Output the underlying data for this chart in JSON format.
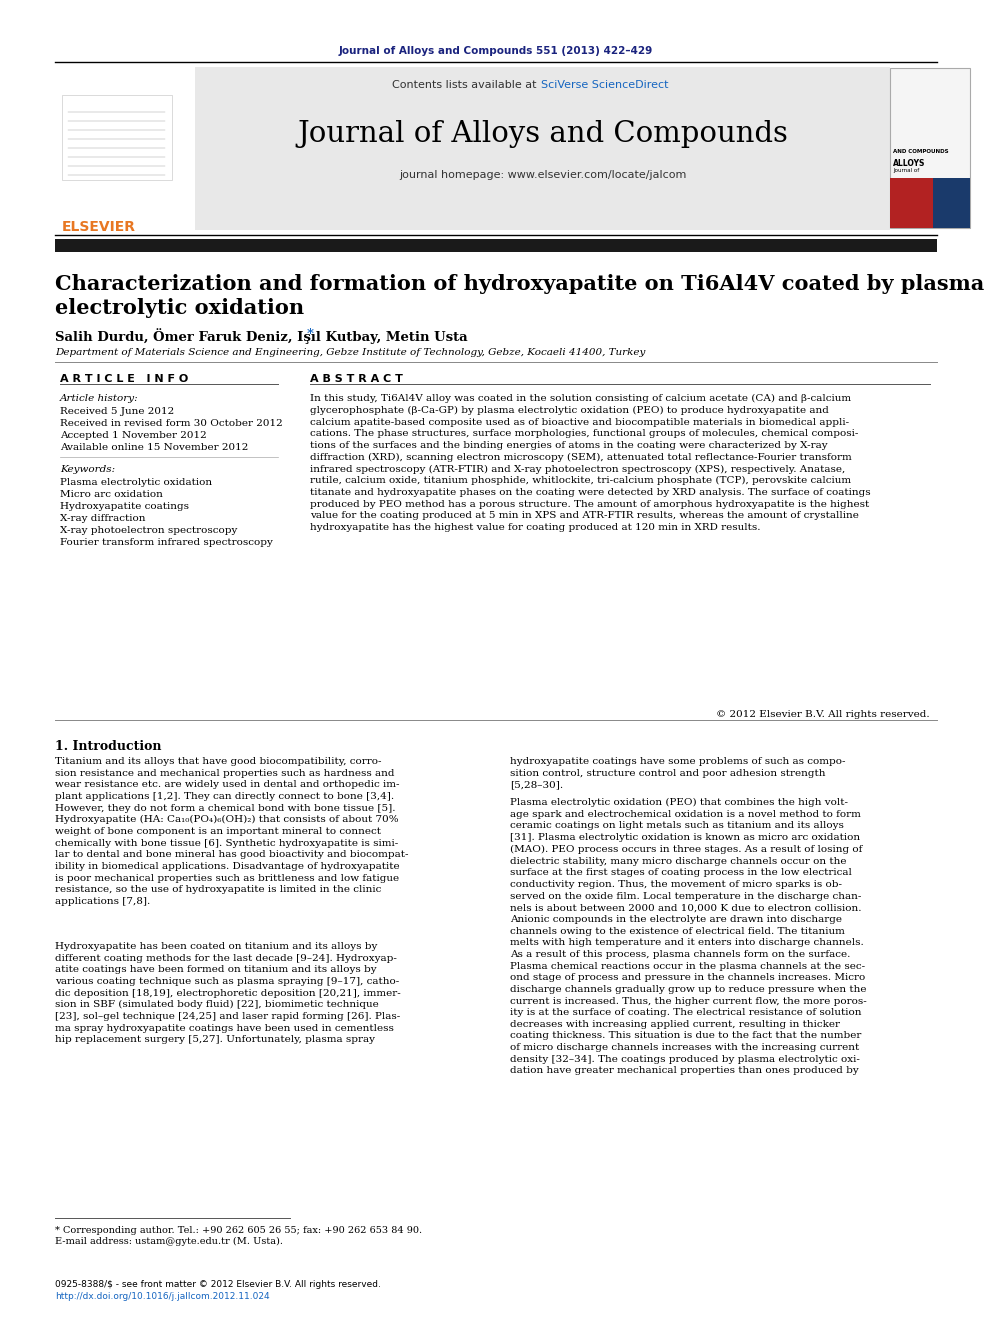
{
  "page_bg": "#ffffff",
  "top_journal_ref": "Journal of Alloys and Compounds 551 (2013) 422–429",
  "top_ref_color": "#1a237e",
  "header_bg": "#e8e8e8",
  "header_text": "Contents lists available at ",
  "header_sciverse": "SciVerse ScienceDirect",
  "header_sciverse_color": "#1565c0",
  "journal_title": "Journal of Alloys and Compounds",
  "journal_homepage": "journal homepage: www.elsevier.com/locate/jalcom",
  "elsevier_color": "#e87722",
  "black_bar_color": "#1a1a1a",
  "article_title_line1": "Characterization and formation of hydroxyapatite on Ti6Al4V coated by plasma",
  "article_title_line2": "electrolytic oxidation",
  "authors": "Salih Durdu, Ömer Faruk Deniz, Işıl Kutbay, Metin Usta",
  "affiliation": "Department of Materials Science and Engineering, Gebze Institute of Technology, Gebze, Kocaeli 41400, Turkey",
  "article_info_header": "A R T I C L E   I N F O",
  "abstract_header": "A B S T R A C T",
  "article_history_label": "Article history:",
  "received": "Received 5 June 2012",
  "received_revised": "Received in revised form 30 October 2012",
  "accepted": "Accepted 1 November 2012",
  "available": "Available online 15 November 2012",
  "keywords_label": "Keywords:",
  "keywords": [
    "Plasma electrolytic oxidation",
    "Micro arc oxidation",
    "Hydroxyapatite coatings",
    "X-ray diffraction",
    "X-ray photoelectron spectroscopy",
    "Fourier transform infrared spectroscopy"
  ],
  "abstract_text": "In this study, Ti6Al4V alloy was coated in the solution consisting of calcium acetate (CA) and β-calcium\nglycerophosphate (β-Ca-GP) by plasma electrolytic oxidation (PEO) to produce hydroxyapatite and\ncalcium apatite-based composite used as of bioactive and biocompatible materials in biomedical appli-\ncations. The phase structures, surface morphologies, functional groups of molecules, chemical composi-\ntions of the surfaces and the binding energies of atoms in the coating were characterized by X-ray\ndiffraction (XRD), scanning electron microscopy (SEM), attenuated total reflectance-Fourier transform\ninfrared spectroscopy (ATR-FTIR) and X-ray photoelectron spectroscopy (XPS), respectively. Anatase,\nrutile, calcium oxide, titanium phosphide, whitlockite, tri-calcium phosphate (TCP), perovskite calcium\ntitanate and hydroxyapatite phases on the coating were detected by XRD analysis. The surface of coatings\nproduced by PEO method has a porous structure. The amount of amorphous hydroxyapatite is the highest\nvalue for the coating produced at 5 min in XPS and ATR-FTIR results, whereas the amount of crystalline\nhydroxyapatite has the highest value for coating produced at 120 min in XRD results.",
  "copyright": "© 2012 Elsevier B.V. All rights reserved.",
  "intro_header": "1. Introduction",
  "intro_left_para1": "Titanium and its alloys that have good biocompatibility, corro-\nsion resistance and mechanical properties such as hardness and\nwear resistance etc. are widely used in dental and orthopedic im-\nplant applications [1,2]. They can directly connect to bone [3,4].\nHowever, they do not form a chemical bond with bone tissue [5].\nHydroxyapatite (HA: Ca₁₀(PO₄)₆(OH)₂) that consists of about 70%\nweight of bone component is an important mineral to connect\nchemically with bone tissue [6]. Synthetic hydroxyapatite is simi-\nlar to dental and bone mineral has good bioactivity and biocompat-\nibility in biomedical applications. Disadvantage of hydroxyapatite\nis poor mechanical properties such as brittleness and low fatigue\nresistance, so the use of hydroxyapatite is limited in the clinic\napplications [7,8].",
  "intro_left_para2": "Hydroxyapatite has been coated on titanium and its alloys by\ndifferent coating methods for the last decade [9–24]. Hydroxyap-\natite coatings have been formed on titanium and its alloys by\nvarious coating technique such as plasma spraying [9–17], catho-\ndic deposition [18,19], electrophoretic deposition [20,21], immer-\nsion in SBF (simulated body fluid) [22], biomimetic technique\n[23], sol–gel technique [24,25] and laser rapid forming [26]. Plas-\nma spray hydroxyapatite coatings have been used in cementless\nhip replacement surgery [5,27]. Unfortunately, plasma spray",
  "intro_right_para1": "hydroxyapatite coatings have some problems of such as compo-\nsition control, structure control and poor adhesion strength\n[5,28–30].",
  "intro_right_para2": "Plasma electrolytic oxidation (PEO) that combines the high volt-\nage spark and electrochemical oxidation is a novel method to form\nceramic coatings on light metals such as titanium and its alloys\n[31]. Plasma electrolytic oxidation is known as micro arc oxidation\n(MAO). PEO process occurs in three stages. As a result of losing of\ndielectric stability, many micro discharge channels occur on the\nsurface at the first stages of coating process in the low electrical\nconductivity region. Thus, the movement of micro sparks is ob-\nserved on the oxide film. Local temperature in the discharge chan-\nnels is about between 2000 and 10,000 K due to electron collision.\nAnionic compounds in the electrolyte are drawn into discharge\nchannels owing to the existence of electrical field. The titanium\nmelts with high temperature and it enters into discharge channels.\nAs a result of this process, plasma channels form on the surface.\nPlasma chemical reactions occur in the plasma channels at the sec-\nond stage of process and pressure in the channels increases. Micro\ndischarge channels gradually grow up to reduce pressure when the\ncurrent is increased. Thus, the higher current flow, the more poros-\nity is at the surface of coating. The electrical resistance of solution\ndecreases with increasing applied current, resulting in thicker\ncoating thickness. This situation is due to the fact that the number\nof micro discharge channels increases with the increasing current\ndensity [32–34]. The coatings produced by plasma electrolytic oxi-\ndation have greater mechanical properties than ones produced by",
  "footnote_line1": "* Corresponding author. Tel.: +90 262 605 26 55; fax: +90 262 653 84 90.",
  "footnote_line2": "E-mail address: ustam@gyte.edu.tr (M. Usta).",
  "issn_line1": "0925-8388/$ - see front matter © 2012 Elsevier B.V. All rights reserved.",
  "issn_line2": "http://dx.doi.org/10.1016/j.jallcom.2012.11.024",
  "issn_color": "#1565c0",
  "cover_red": "#b22222",
  "cover_blue": "#1a3a6b"
}
